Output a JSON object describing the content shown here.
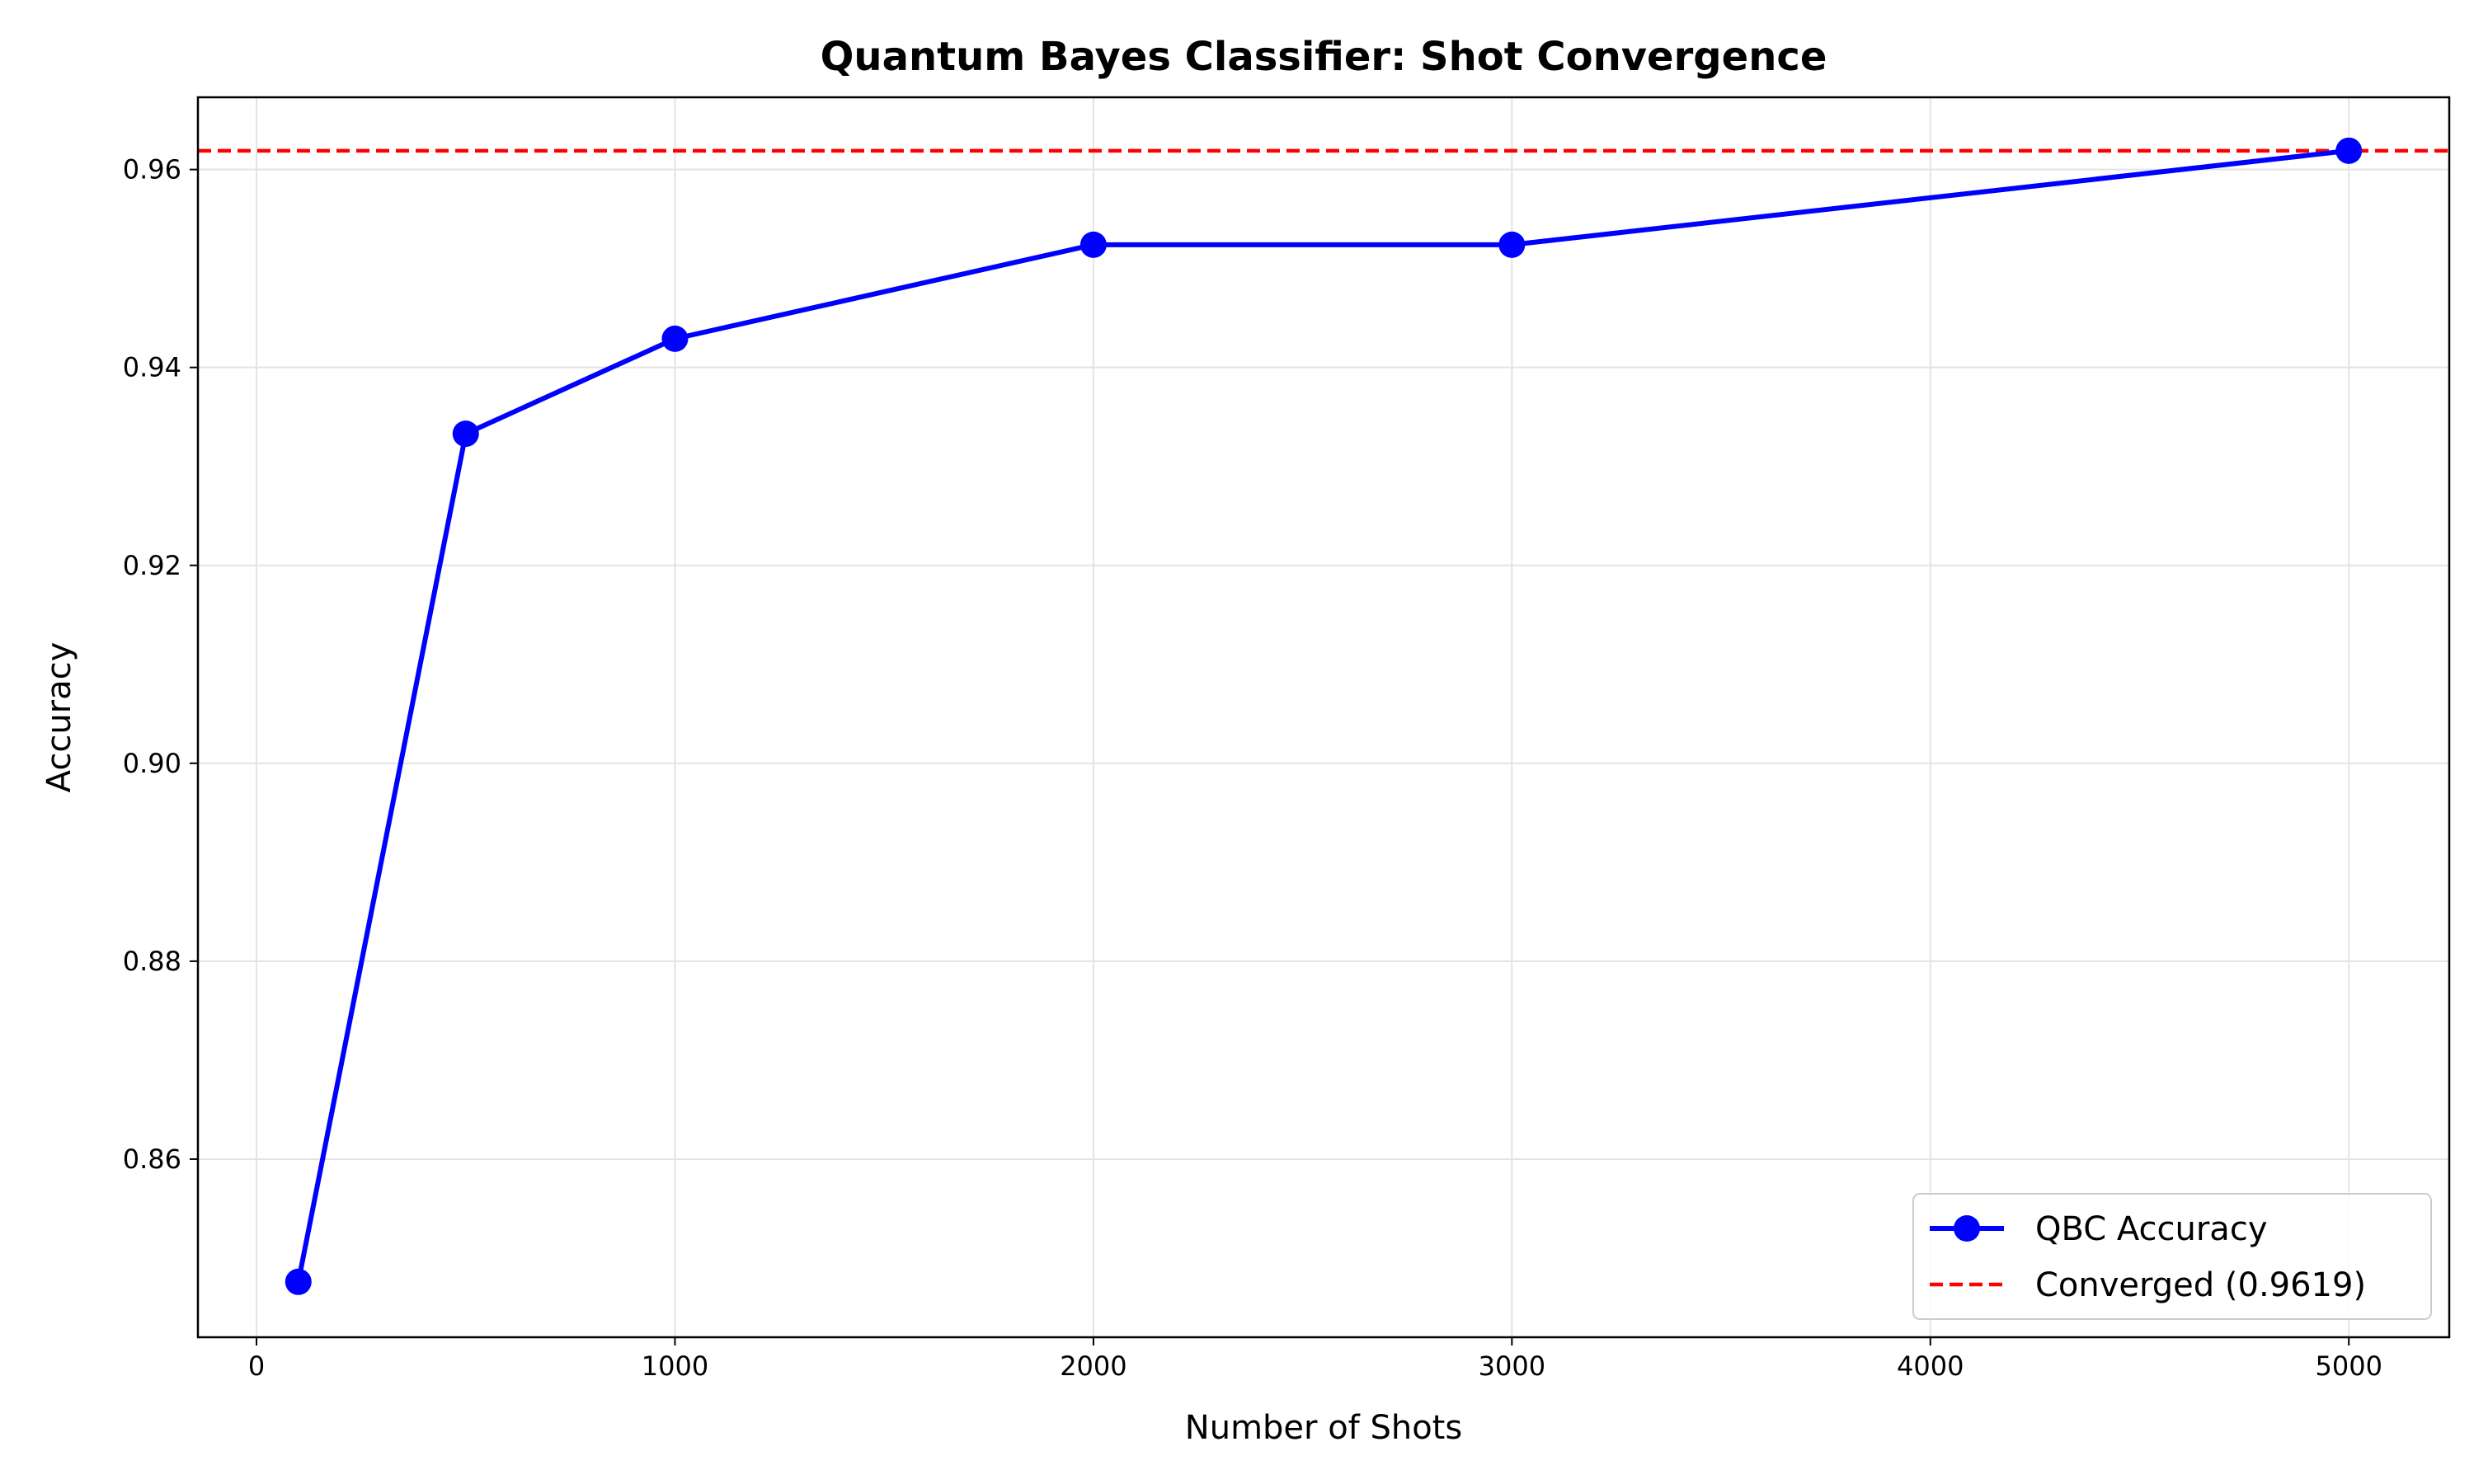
{
  "chart_data": {
    "type": "line",
    "title": "Quantum Bayes Classifier: Shot Convergence",
    "xlabel": "Number of Shots",
    "ylabel": "Accuracy",
    "xlim": [
      -140,
      5240
    ],
    "ylim": [
      0.842,
      0.9673
    ],
    "xticks": [
      0,
      1000,
      2000,
      3000,
      4000,
      5000
    ],
    "xtick_labels": [
      "0",
      "1000",
      "2000",
      "3000",
      "4000",
      "5000"
    ],
    "yticks": [
      0.86,
      0.88,
      0.9,
      0.92,
      0.94,
      0.96
    ],
    "ytick_labels": [
      "0.86",
      "0.88",
      "0.90",
      "0.92",
      "0.94",
      "0.96"
    ],
    "grid": true,
    "legend_position": "lower-right",
    "series": [
      {
        "name": "QBC Accuracy",
        "style": "line-with-markers",
        "color": "#0000ff",
        "x": [
          100,
          500,
          1000,
          2000,
          3000,
          5000
        ],
        "y": [
          0.8476,
          0.9333,
          0.9429,
          0.9524,
          0.9524,
          0.9619
        ]
      }
    ],
    "reference_lines": [
      {
        "name": "Converged (0.9619)",
        "orientation": "horizontal",
        "style": "dashed",
        "color": "#ff0000",
        "y": 0.9619
      }
    ]
  }
}
